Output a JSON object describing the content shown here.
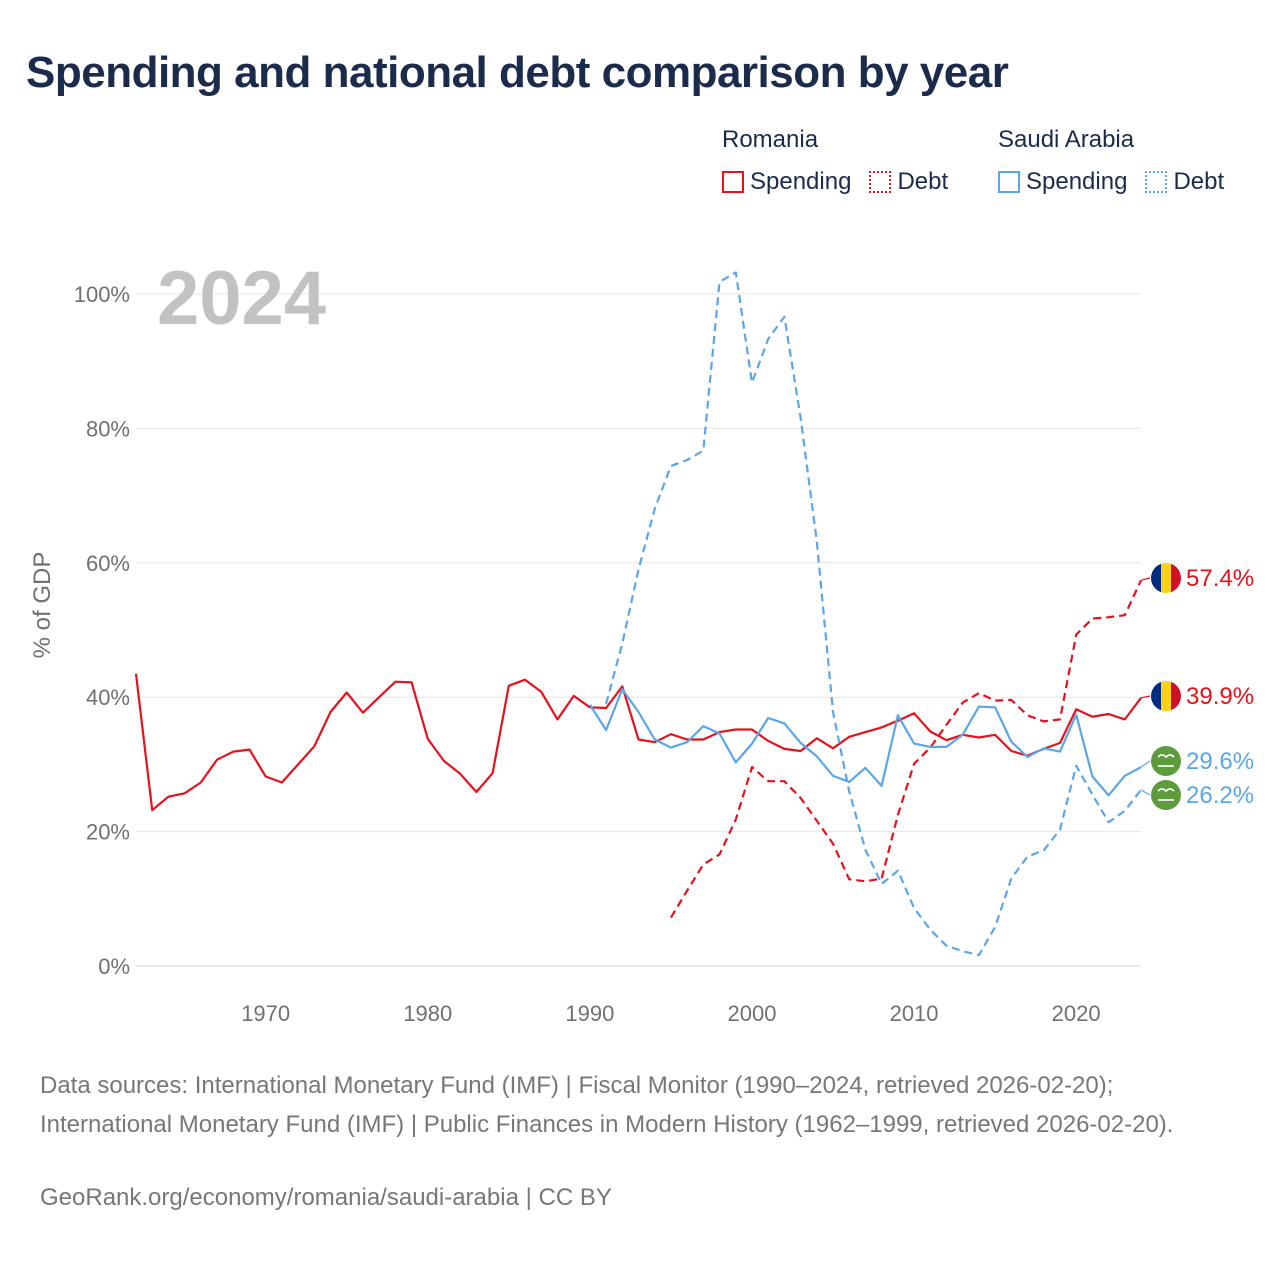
{
  "title": "Spending and national debt comparison by year",
  "legend": {
    "groups": [
      {
        "name": "Romania",
        "items": [
          "Spending",
          "Debt"
        ]
      },
      {
        "name": "Saudi Arabia",
        "items": [
          "Spending",
          "Debt"
        ]
      }
    ]
  },
  "colors": {
    "romania": "#e3121c",
    "saudi_arabia": "#5aa6e6",
    "year_label": "#c2c2c2",
    "grid": "#e6e6e6",
    "axis_text": "#707070"
  },
  "icons": {
    "romania": "romania-flag-icon",
    "saudi_arabia": "saudi-arabia-flag-icon"
  },
  "source_text": "Data sources: International Monetary Fund (IMF) | Fiscal Monitor (1990–2024, retrieved 2026-02-20); International Monetary Fund (IMF) | Public Finances in Modern History (1962–1999, retrieved 2026-02-20).",
  "credit_text": "GeoRank.org/economy/romania/saudi-arabia | CC BY",
  "chart_data": {
    "type": "line",
    "title": "Spending and national debt comparison by year",
    "year_label": "2024",
    "ylabel": "% of GDP",
    "xlabel": "",
    "ylim": [
      0,
      100
    ],
    "xlim": [
      1962,
      2024
    ],
    "y_ticks": [
      0,
      20,
      40,
      60,
      80,
      100
    ],
    "y_tick_labels": [
      "0%",
      "20%",
      "40%",
      "60%",
      "80%",
      "100%"
    ],
    "x_ticks": [
      1970,
      1980,
      1990,
      2000,
      2010,
      2020
    ],
    "x_tick_labels": [
      "1970",
      "1980",
      "1990",
      "2000",
      "2010",
      "2020"
    ],
    "grid": true,
    "legend_position": "top-right",
    "series": [
      {
        "name": "Romania Spending",
        "country": "Romania",
        "measure": "Spending",
        "style": "solid",
        "color": "#e3121c",
        "x": [
          1962,
          1963,
          1964,
          1965,
          1966,
          1967,
          1968,
          1969,
          1970,
          1971,
          1972,
          1973,
          1974,
          1975,
          1976,
          1977,
          1978,
          1979,
          1980,
          1981,
          1982,
          1983,
          1984,
          1985,
          1986,
          1987,
          1988,
          1989,
          1990,
          1991,
          1992,
          1993,
          1994,
          1995,
          1996,
          1997,
          1998,
          1999,
          2000,
          2001,
          2002,
          2003,
          2004,
          2005,
          2006,
          2007,
          2008,
          2009,
          2010,
          2011,
          2012,
          2013,
          2014,
          2015,
          2016,
          2017,
          2018,
          2019,
          2020,
          2021,
          2022,
          2023,
          2024
        ],
        "values": [
          43.5,
          23.2,
          25.2,
          25.7,
          27.3,
          30.7,
          31.9,
          32.2,
          28.2,
          27.3,
          30.0,
          32.7,
          37.8,
          40.7,
          37.7,
          40.0,
          42.3,
          42.2,
          33.8,
          30.5,
          28.6,
          25.9,
          28.7,
          41.7,
          42.6,
          40.8,
          36.7,
          40.2,
          38.5,
          38.4,
          41.6,
          33.7,
          33.3,
          34.5,
          33.7,
          33.7,
          34.8,
          35.2,
          35.2,
          33.5,
          32.3,
          32.0,
          33.9,
          32.4,
          34.1,
          34.8,
          35.5,
          36.5,
          37.6,
          34.9,
          33.6,
          34.4,
          34.0,
          34.4,
          32.0,
          31.3,
          32.3,
          33.2,
          38.2,
          37.1,
          37.5,
          36.7,
          39.9
        ]
      },
      {
        "name": "Romania Debt",
        "country": "Romania",
        "measure": "Debt",
        "style": "dashed",
        "color": "#e3121c",
        "x": [
          1995,
          1996,
          1997,
          1998,
          1999,
          2000,
          2001,
          2002,
          2003,
          2004,
          2005,
          2006,
          2007,
          2008,
          2009,
          2010,
          2011,
          2012,
          2013,
          2014,
          2015,
          2016,
          2017,
          2018,
          2019,
          2020,
          2021,
          2022,
          2023,
          2024
        ],
        "values": [
          7.2,
          11.2,
          15.1,
          16.6,
          21.8,
          29.6,
          27.5,
          27.5,
          25.0,
          21.6,
          18.2,
          12.9,
          12.6,
          13.0,
          22.5,
          30.1,
          32.5,
          35.9,
          39.2,
          40.6,
          39.5,
          39.6,
          37.3,
          36.4,
          36.7,
          49.3,
          51.7,
          51.9,
          52.2,
          57.4
        ]
      },
      {
        "name": "Saudi Arabia Spending",
        "country": "Saudi Arabia",
        "measure": "Spending",
        "style": "solid",
        "color": "#5aa6e6",
        "x": [
          1990,
          1991,
          1992,
          1993,
          1994,
          1995,
          1996,
          1997,
          1998,
          1999,
          2000,
          2001,
          2002,
          2003,
          2004,
          2005,
          2006,
          2007,
          2008,
          2009,
          2010,
          2011,
          2012,
          2013,
          2014,
          2015,
          2016,
          2017,
          2018,
          2019,
          2020,
          2021,
          2022,
          2023,
          2024
        ],
        "values": [
          38.9,
          35.1,
          41.2,
          37.8,
          33.7,
          32.5,
          33.3,
          35.7,
          34.6,
          30.3,
          33.1,
          36.9,
          36.1,
          33.2,
          31.2,
          28.3,
          27.4,
          29.5,
          26.8,
          37.3,
          33.1,
          32.6,
          32.6,
          34.4,
          38.6,
          38.5,
          33.4,
          31.1,
          32.4,
          31.9,
          37.4,
          28.2,
          25.4,
          28.3,
          29.6
        ]
      },
      {
        "name": "Saudi Arabia Debt",
        "country": "Saudi Arabia",
        "measure": "Debt",
        "style": "dashed",
        "color": "#5aa6e6",
        "x": [
          1991,
          1992,
          1993,
          1994,
          1995,
          1996,
          1997,
          1998,
          1999,
          2000,
          2001,
          2002,
          2003,
          2004,
          2005,
          2006,
          2007,
          2008,
          2009,
          2010,
          2011,
          2012,
          2013,
          2014,
          2015,
          2016,
          2017,
          2018,
          2019,
          2020,
          2021,
          2022,
          2023,
          2024
        ],
        "values": [
          39.0,
          48.0,
          59.0,
          68.0,
          74.4,
          75.3,
          76.7,
          101.8,
          103.2,
          86.8,
          93.3,
          96.6,
          81.6,
          63.2,
          37.8,
          26.0,
          17.3,
          12.2,
          14.2,
          8.6,
          5.4,
          3.0,
          2.2,
          1.6,
          5.8,
          13.0,
          16.3,
          17.2,
          20.3,
          29.8,
          25.5,
          21.4,
          23.1,
          26.2
        ]
      }
    ],
    "end_labels": [
      {
        "series": "Romania Debt",
        "text": "57.4%",
        "value": 57.4,
        "icon": "romania-flag-icon"
      },
      {
        "series": "Romania Spending",
        "text": "39.9%",
        "value": 39.9,
        "icon": "romania-flag-icon"
      },
      {
        "series": "Saudi Arabia Spending",
        "text": "29.6%",
        "value": 29.6,
        "icon": "saudi-arabia-flag-icon"
      },
      {
        "series": "Saudi Arabia Debt",
        "text": "26.2%",
        "value": 26.2,
        "icon": "saudi-arabia-flag-icon"
      }
    ]
  }
}
